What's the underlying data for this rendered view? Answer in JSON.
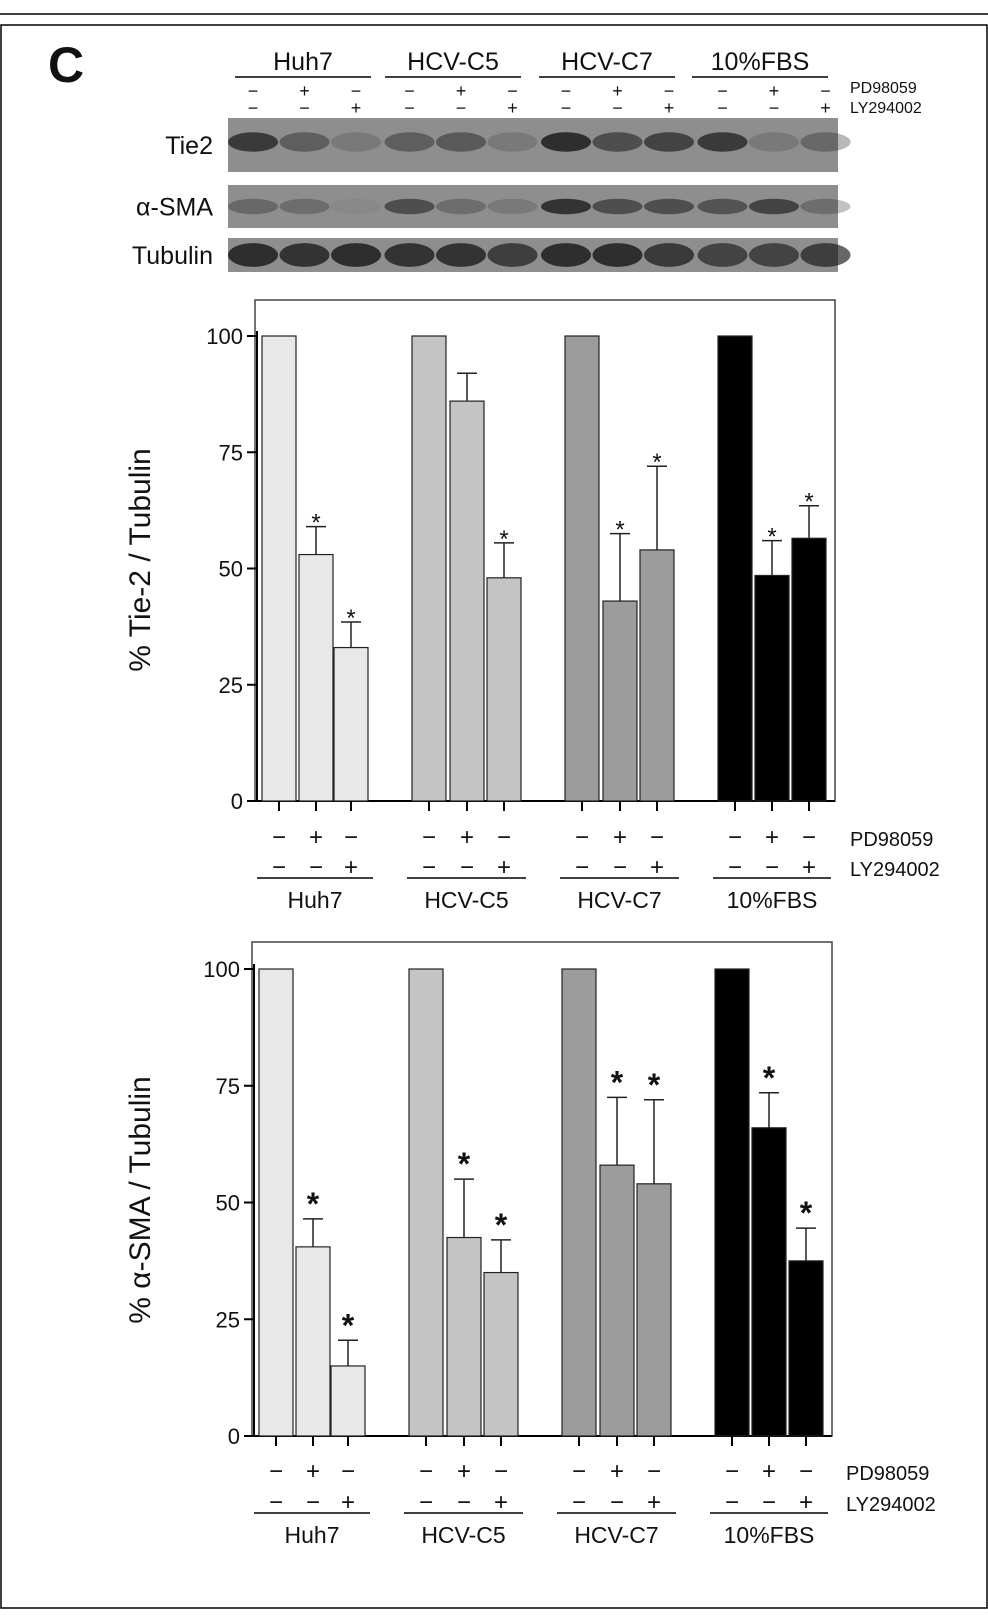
{
  "panel_label": "C",
  "groups": [
    "Huh7",
    "HCV-C5",
    "HCV-C7",
    "10%FBS"
  ],
  "treatments": {
    "pd": {
      "label": "PD98059",
      "signs": [
        "−",
        "+",
        "−"
      ]
    },
    "ly": {
      "label": "LY294002",
      "signs": [
        "−",
        "−",
        "+"
      ]
    }
  },
  "blot": {
    "rows": [
      "Tie2",
      "α-SMA",
      "Tubulin"
    ]
  },
  "group_colors": [
    "#e8e8e8",
    "#c4c4c4",
    "#9c9c9c",
    "#000000"
  ],
  "chart_data": [
    {
      "type": "bar",
      "ylabel": "% Tie-2 / Tubulin",
      "ylim": [
        0,
        100
      ],
      "yticks": [
        0,
        25,
        50,
        75,
        100
      ],
      "categories": [
        "Huh7",
        "HCV-C5",
        "HCV-C7",
        "10%FBS"
      ],
      "values": [
        [
          100,
          53,
          33
        ],
        [
          100,
          86,
          48
        ],
        [
          100,
          43,
          54
        ],
        [
          100,
          48.5,
          56.5
        ]
      ],
      "error_upper": [
        [
          null,
          59,
          38.5
        ],
        [
          null,
          92,
          55.5
        ],
        [
          null,
          57.5,
          72
        ],
        [
          null,
          56,
          63.5
        ]
      ],
      "significance": [
        [
          false,
          true,
          true
        ],
        [
          false,
          false,
          true
        ],
        [
          false,
          true,
          true
        ],
        [
          false,
          true,
          true
        ]
      ],
      "significance_mark": "*"
    },
    {
      "type": "bar",
      "ylabel": "% α-SMA / Tubulin",
      "ylim": [
        0,
        100
      ],
      "yticks": [
        0,
        25,
        50,
        75,
        100
      ],
      "categories": [
        "Huh7",
        "HCV-C5",
        "HCV-C7",
        "10%FBS"
      ],
      "values": [
        [
          100,
          40.5,
          15
        ],
        [
          100,
          42.5,
          35
        ],
        [
          100,
          58,
          54
        ],
        [
          100,
          66,
          37.5
        ]
      ],
      "error_upper": [
        [
          null,
          46.5,
          20.5
        ],
        [
          null,
          55,
          42
        ],
        [
          null,
          72.5,
          72
        ],
        [
          null,
          73.5,
          44.5
        ]
      ],
      "significance": [
        [
          false,
          true,
          true
        ],
        [
          false,
          true,
          true
        ],
        [
          false,
          true,
          true
        ],
        [
          false,
          true,
          true
        ]
      ],
      "significance_mark": "*"
    }
  ]
}
